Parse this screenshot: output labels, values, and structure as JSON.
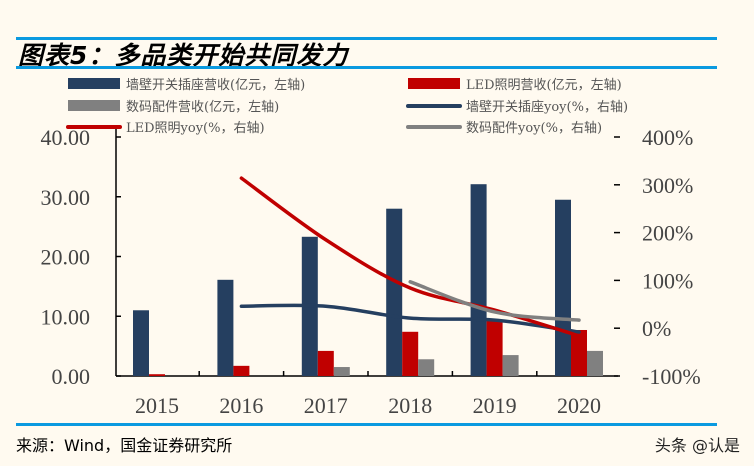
{
  "title": "图表5：多品类开始共同发力",
  "source": "来源：Wind，国金证券研究所",
  "watermark": "头条 @认是",
  "chart_data": {
    "type": "bar+line",
    "title": "图表5：多品类开始共同发力",
    "categories": [
      "2015",
      "2016",
      "2017",
      "2018",
      "2019",
      "2020"
    ],
    "left_axis": {
      "ylim": [
        0,
        40
      ],
      "ticks": [
        "0.00",
        "10.00",
        "20.00",
        "30.00",
        "40.00"
      ]
    },
    "right_axis": {
      "ylim": [
        -100,
        400
      ],
      "ticks": [
        "-100%",
        "0%",
        "100%",
        "200%",
        "300%",
        "400%"
      ]
    },
    "grid": false,
    "legend_position": "top",
    "series": [
      {
        "name": "墙壁开关插座营收(亿元，左轴)",
        "type": "bar",
        "axis": "left",
        "color": "#253f60",
        "values": [
          11.0,
          16.1,
          23.3,
          28.0,
          32.1,
          29.5
        ]
      },
      {
        "name": "LED照明营收(亿元，左轴)",
        "type": "bar",
        "axis": "left",
        "color": "#c00000",
        "values": [
          0.3,
          1.7,
          4.2,
          7.4,
          9.4,
          7.7
        ]
      },
      {
        "name": "数码配件营收(亿元，左轴)",
        "type": "bar",
        "axis": "left",
        "color": "#808080",
        "values": [
          null,
          null,
          1.5,
          2.8,
          3.5,
          4.2
        ]
      },
      {
        "name": "墙壁开关插座yoy(%，右轴)",
        "type": "line",
        "axis": "right",
        "color": "#253f60",
        "values": [
          null,
          46,
          46,
          21,
          17,
          -8
        ]
      },
      {
        "name": "LED照明yoy(%，右轴)",
        "type": "line",
        "axis": "right",
        "color": "#c00000",
        "values": [
          null,
          314,
          185,
          84,
          38,
          -16
        ]
      },
      {
        "name": "数码配件yoy(%，右轴)",
        "type": "line",
        "axis": "right",
        "color": "#808080",
        "values": [
          null,
          null,
          null,
          97,
          34,
          17
        ]
      }
    ]
  }
}
